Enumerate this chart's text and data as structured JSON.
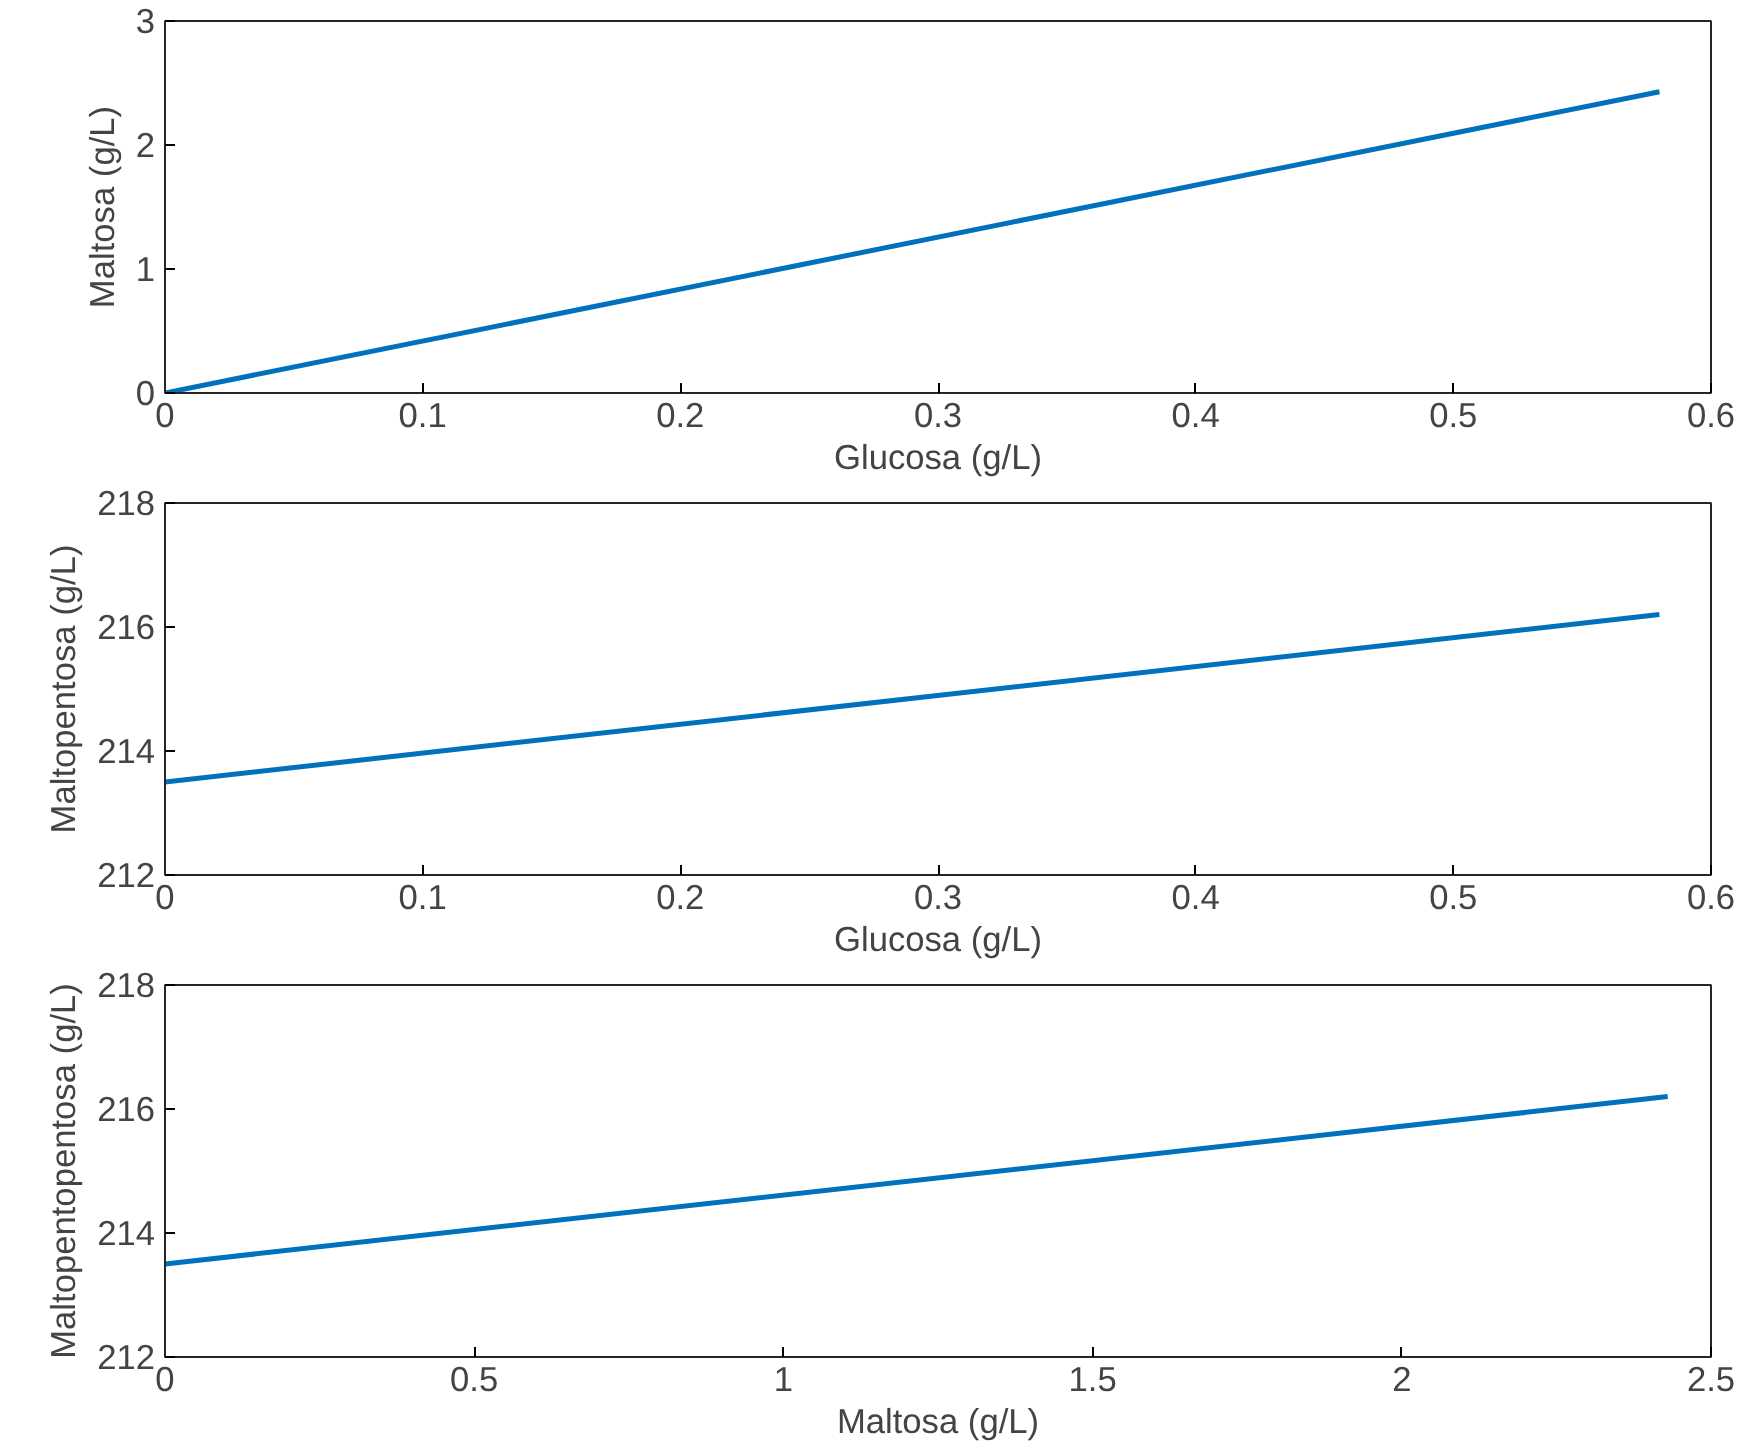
{
  "chart_data": [
    {
      "type": "line",
      "xlabel": "Glucosa (g/L)",
      "ylabel": "Maltosa (g/L)",
      "x": [
        0,
        0.58
      ],
      "series": [
        {
          "color": "#0072bd",
          "values": [
            0,
            2.43
          ]
        }
      ],
      "xlim": [
        0,
        0.6
      ],
      "ylim": [
        0,
        3
      ],
      "xticks": [
        0,
        0.1,
        0.2,
        0.3,
        0.4,
        0.5,
        0.6
      ],
      "yticks": [
        0,
        1,
        2,
        3
      ],
      "grid": false
    },
    {
      "type": "line",
      "xlabel": "Glucosa (g/L)",
      "ylabel": "Maltopentosa (g/L)",
      "x": [
        0,
        0.58
      ],
      "series": [
        {
          "color": "#0072bd",
          "values": [
            213.5,
            216.2
          ]
        }
      ],
      "xlim": [
        0,
        0.6
      ],
      "ylim": [
        212,
        218
      ],
      "xticks": [
        0,
        0.1,
        0.2,
        0.3,
        0.4,
        0.5,
        0.6
      ],
      "yticks": [
        212,
        214,
        216,
        218
      ],
      "grid": false
    },
    {
      "type": "line",
      "xlabel": "Maltosa (g/L)",
      "ylabel": "Maltopentopentosa (g/L)",
      "x": [
        0,
        2.43
      ],
      "series": [
        {
          "color": "#0072bd",
          "values": [
            213.5,
            216.2
          ]
        }
      ],
      "xlim": [
        0,
        2.5
      ],
      "ylim": [
        212,
        218
      ],
      "xticks": [
        0,
        0.5,
        1,
        1.5,
        2,
        2.5
      ],
      "yticks": [
        212,
        214,
        216,
        218
      ],
      "grid": false
    }
  ]
}
